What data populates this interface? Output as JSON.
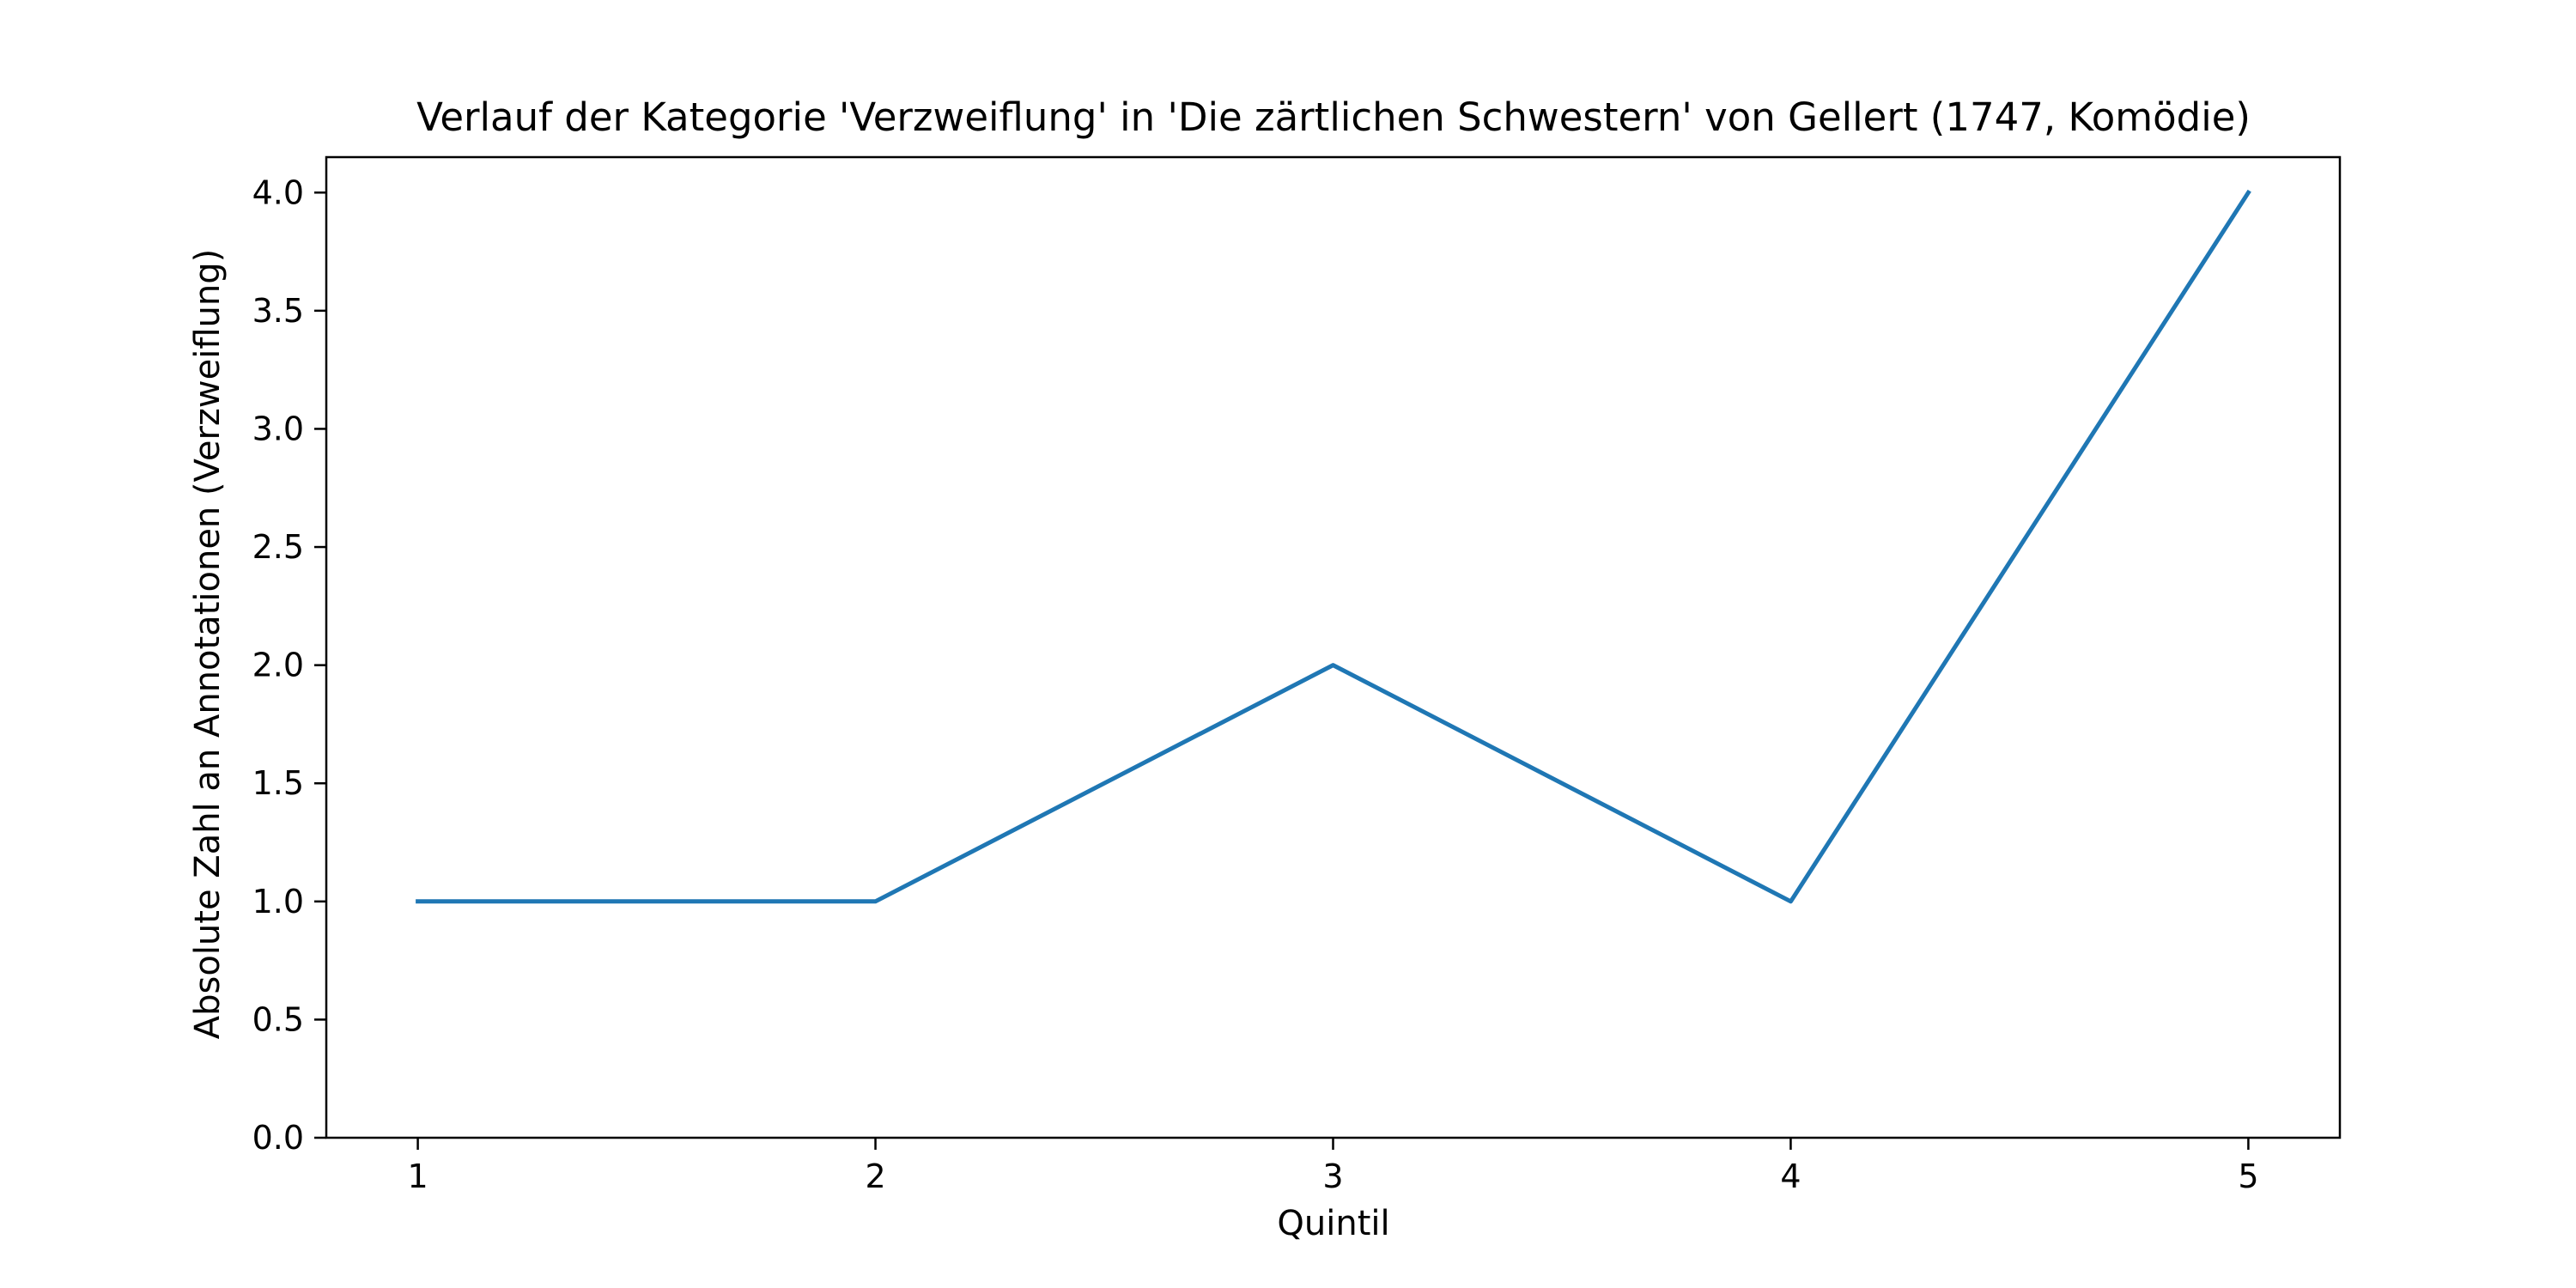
{
  "chart_data": {
    "type": "line",
    "title": "Verlauf der Kategorie 'Verzweiflung' in 'Die zärtlichen Schwestern' von Gellert (1747, Komödie)",
    "xlabel": "Quintil",
    "ylabel": "Absolute Zahl an Annotationen (Verzweiflung)",
    "x": [
      1,
      2,
      3,
      4,
      5
    ],
    "series": [
      {
        "values": [
          1,
          1,
          2,
          1,
          4
        ],
        "color": "#1f77b4"
      }
    ],
    "xticks": [
      "1",
      "2",
      "3",
      "4",
      "5"
    ],
    "yticks": [
      "0.0",
      "0.5",
      "1.0",
      "1.5",
      "2.0",
      "2.5",
      "3.0",
      "3.5",
      "4.0"
    ],
    "xlim": [
      0.8,
      5.2
    ],
    "ylim": [
      0,
      4.15
    ],
    "grid": false,
    "legend": "none"
  }
}
